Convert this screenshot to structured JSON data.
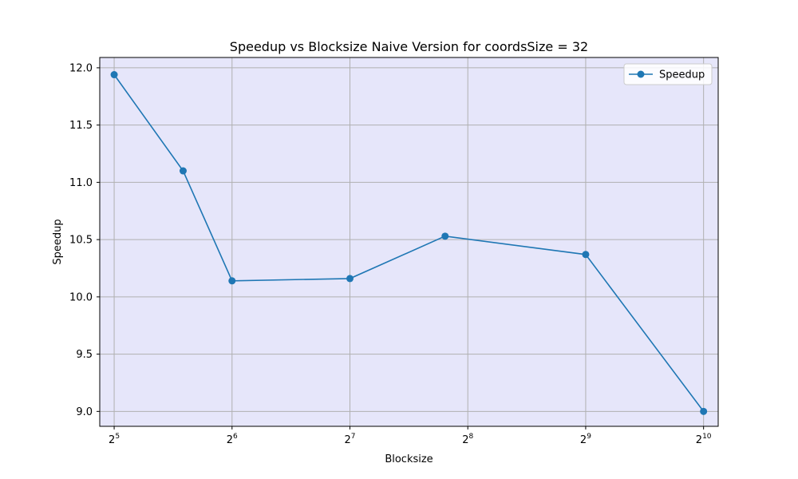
{
  "chart_data": {
    "type": "line",
    "title": "Speedup vs Blocksize Naive Version for coordsSize = 32",
    "xlabel": "Blocksize",
    "ylabel": "Speedup",
    "x_scale": "log2",
    "x": [
      32,
      48,
      64,
      128,
      224,
      512,
      1024
    ],
    "series": [
      {
        "name": "Speedup",
        "values": [
          11.94,
          11.1,
          10.14,
          10.16,
          10.53,
          10.37,
          9.0
        ]
      }
    ],
    "xlim": [
      29.4,
      1116
    ],
    "ylim": [
      8.87,
      12.09
    ],
    "x_ticks": [
      {
        "base": "2",
        "exp": "5",
        "value": 32
      },
      {
        "base": "2",
        "exp": "6",
        "value": 64
      },
      {
        "base": "2",
        "exp": "7",
        "value": 128
      },
      {
        "base": "2",
        "exp": "8",
        "value": 256
      },
      {
        "base": "2",
        "exp": "9",
        "value": 512
      },
      {
        "base": "2",
        "exp": "10",
        "value": 1024
      }
    ],
    "y_ticks": [
      "9.0",
      "9.5",
      "10.0",
      "10.5",
      "11.0",
      "11.5",
      "12.0"
    ],
    "grid": true,
    "legend_position": "top-right",
    "colors": {
      "line": "#1f77b4",
      "plot_background": "#e6e6fa",
      "grid": "#b0b0b0"
    }
  }
}
